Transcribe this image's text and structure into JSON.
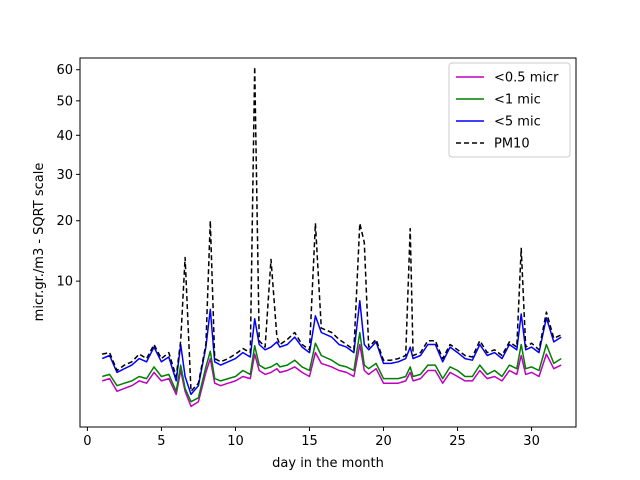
{
  "chart_data": {
    "type": "line",
    "title": "",
    "xlabel": "day in the month",
    "ylabel": "micr.gr./m3 - SQRT scale",
    "xlim": [
      -0.5,
      33.0
    ],
    "ylim": [
      0.0,
      64.0
    ],
    "y_scale": "sqrt",
    "x_ticks": [
      0,
      5,
      10,
      15,
      20,
      25,
      30
    ],
    "y_ticks": [
      10,
      20,
      30,
      40,
      50,
      60
    ],
    "grid": false,
    "legend_position": "top-right",
    "series": [
      {
        "name": "<0.5 micr",
        "color": "#bf00bf",
        "dash": "solid",
        "x": [
          1.0,
          1.5,
          2.0,
          2.5,
          3.0,
          3.5,
          4.0,
          4.5,
          5.0,
          5.5,
          6.0,
          6.3,
          6.6,
          7.0,
          7.5,
          8.0,
          8.3,
          8.6,
          9.0,
          9.5,
          10.0,
          10.5,
          11.0,
          11.3,
          11.6,
          12.0,
          12.4,
          12.8,
          13.0,
          13.5,
          14.0,
          14.5,
          15.0,
          15.4,
          15.8,
          16.5,
          17.0,
          17.5,
          18.0,
          18.4,
          18.7,
          19.0,
          19.5,
          20.0,
          20.5,
          21.0,
          21.5,
          21.8,
          22.0,
          22.5,
          23.0,
          23.5,
          24.0,
          24.5,
          25.0,
          25.5,
          26.0,
          26.5,
          27.0,
          27.5,
          28.0,
          28.5,
          29.0,
          29.3,
          29.6,
          30.0,
          30.5,
          31.0,
          31.5,
          32.0
        ],
        "y": [
          1.0,
          1.1,
          0.6,
          0.7,
          0.8,
          1.0,
          0.9,
          1.4,
          1.0,
          1.1,
          0.5,
          1.5,
          0.6,
          0.2,
          0.3,
          1.4,
          2.2,
          0.9,
          0.8,
          0.9,
          1.0,
          1.2,
          1.1,
          2.5,
          1.5,
          1.3,
          1.4,
          1.6,
          1.4,
          1.5,
          1.7,
          1.4,
          1.2,
          2.6,
          1.9,
          1.7,
          1.5,
          1.4,
          1.2,
          3.2,
          1.5,
          1.3,
          1.6,
          0.9,
          0.9,
          0.9,
          1.0,
          1.4,
          1.0,
          1.1,
          1.5,
          1.5,
          0.9,
          1.4,
          1.2,
          1.0,
          1.0,
          1.5,
          1.1,
          1.2,
          1.0,
          1.5,
          1.3,
          2.4,
          1.3,
          1.4,
          1.2,
          2.5,
          1.6,
          1.8
        ]
      },
      {
        "name": "<1 mic",
        "color": "#008000",
        "dash": "solid",
        "x": [
          1.0,
          1.5,
          2.0,
          2.5,
          3.0,
          3.5,
          4.0,
          4.5,
          5.0,
          5.5,
          6.0,
          6.3,
          6.6,
          7.0,
          7.5,
          8.0,
          8.3,
          8.6,
          9.0,
          9.5,
          10.0,
          10.5,
          11.0,
          11.3,
          11.6,
          12.0,
          12.4,
          12.8,
          13.0,
          13.5,
          14.0,
          14.5,
          15.0,
          15.4,
          15.8,
          16.5,
          17.0,
          17.5,
          18.0,
          18.4,
          18.7,
          19.0,
          19.5,
          20.0,
          20.5,
          21.0,
          21.5,
          21.8,
          22.0,
          22.5,
          23.0,
          23.5,
          24.0,
          24.5,
          25.0,
          25.5,
          26.0,
          26.5,
          27.0,
          27.5,
          28.0,
          28.5,
          29.0,
          29.3,
          29.6,
          30.0,
          30.5,
          31.0,
          31.5,
          32.0
        ],
        "y": [
          1.2,
          1.3,
          0.8,
          0.9,
          1.0,
          1.2,
          1.1,
          1.7,
          1.2,
          1.3,
          0.6,
          1.8,
          0.7,
          0.3,
          0.4,
          1.7,
          2.7,
          1.1,
          1.0,
          1.1,
          1.2,
          1.5,
          1.3,
          3.1,
          1.8,
          1.6,
          1.7,
          1.9,
          1.7,
          1.8,
          2.1,
          1.7,
          1.5,
          3.3,
          2.4,
          2.1,
          1.8,
          1.7,
          1.5,
          4.2,
          1.8,
          1.6,
          1.9,
          1.1,
          1.1,
          1.1,
          1.2,
          1.7,
          1.2,
          1.3,
          1.8,
          1.8,
          1.1,
          1.7,
          1.5,
          1.2,
          1.2,
          1.8,
          1.3,
          1.5,
          1.2,
          1.8,
          1.6,
          3.2,
          1.6,
          1.7,
          1.5,
          3.2,
          1.9,
          2.2
        ]
      },
      {
        "name": "<5 mic",
        "color": "#0000ff",
        "dash": "solid",
        "x": [
          1.0,
          1.5,
          2.0,
          2.5,
          3.0,
          3.5,
          4.0,
          4.5,
          5.0,
          5.5,
          6.0,
          6.3,
          6.6,
          7.0,
          7.5,
          8.0,
          8.3,
          8.6,
          9.0,
          9.5,
          10.0,
          10.5,
          11.0,
          11.3,
          11.6,
          12.0,
          12.4,
          12.8,
          13.0,
          13.5,
          14.0,
          14.5,
          15.0,
          15.4,
          15.8,
          16.5,
          17.0,
          17.5,
          18.0,
          18.4,
          18.7,
          19.0,
          19.5,
          20.0,
          20.5,
          21.0,
          21.5,
          21.8,
          22.0,
          22.5,
          23.0,
          23.5,
          24.0,
          24.5,
          25.0,
          25.5,
          26.0,
          26.5,
          27.0,
          27.5,
          28.0,
          28.5,
          29.0,
          29.3,
          29.6,
          30.0,
          30.5,
          31.0,
          31.5,
          32.0
        ],
        "y": [
          2.2,
          2.4,
          1.4,
          1.6,
          1.8,
          2.2,
          2.0,
          3.0,
          2.0,
          2.3,
          1.0,
          3.2,
          1.2,
          0.5,
          0.8,
          3.0,
          6.5,
          2.0,
          1.8,
          2.0,
          2.2,
          2.6,
          2.3,
          5.5,
          3.2,
          2.8,
          3.0,
          3.4,
          3.0,
          3.2,
          3.8,
          3.0,
          2.6,
          5.8,
          4.2,
          3.8,
          3.2,
          3.0,
          2.6,
          7.5,
          3.2,
          2.8,
          3.4,
          1.9,
          1.9,
          2.0,
          2.2,
          3.0,
          2.2,
          2.4,
          3.2,
          3.2,
          2.0,
          3.0,
          2.6,
          2.2,
          2.1,
          3.2,
          2.4,
          2.6,
          2.2,
          3.2,
          2.8,
          6.0,
          2.8,
          3.0,
          2.6,
          5.6,
          3.4,
          3.8
        ]
      },
      {
        "name": "PM10",
        "color": "#000000",
        "dash": "dashed",
        "x": [
          1.0,
          1.5,
          2.0,
          2.5,
          3.0,
          3.5,
          4.0,
          4.5,
          5.0,
          5.5,
          6.0,
          6.3,
          6.6,
          7.0,
          7.5,
          8.0,
          8.3,
          8.6,
          9.0,
          9.5,
          10.0,
          10.5,
          11.0,
          11.3,
          11.6,
          12.0,
          12.4,
          12.8,
          13.0,
          13.5,
          14.0,
          14.5,
          15.0,
          15.4,
          15.8,
          16.5,
          17.0,
          17.5,
          18.0,
          18.4,
          18.7,
          19.0,
          19.5,
          20.0,
          20.5,
          21.0,
          21.5,
          21.8,
          22.0,
          22.5,
          23.0,
          23.5,
          24.0,
          24.5,
          25.0,
          25.5,
          26.0,
          26.5,
          27.0,
          27.5,
          28.0,
          28.5,
          29.0,
          29.3,
          29.6,
          30.0,
          30.5,
          31.0,
          31.5,
          32.0
        ],
        "y": [
          2.5,
          2.6,
          1.5,
          1.8,
          2.0,
          2.5,
          2.2,
          3.2,
          2.2,
          2.6,
          1.2,
          3.5,
          13.5,
          0.6,
          0.9,
          3.2,
          20.0,
          2.2,
          2.0,
          2.2,
          2.5,
          2.9,
          2.6,
          61.0,
          3.5,
          3.0,
          13.2,
          3.8,
          3.2,
          3.6,
          4.2,
          3.2,
          2.8,
          19.5,
          4.6,
          4.2,
          3.6,
          3.2,
          2.8,
          19.5,
          16.0,
          3.0,
          3.6,
          2.1,
          2.1,
          2.2,
          2.4,
          18.5,
          2.4,
          2.6,
          3.5,
          3.5,
          2.2,
          3.2,
          2.8,
          2.4,
          2.3,
          3.5,
          2.6,
          2.8,
          2.4,
          3.4,
          3.0,
          15.0,
          3.0,
          3.3,
          2.8,
          6.2,
          3.7,
          4.0
        ]
      }
    ]
  }
}
